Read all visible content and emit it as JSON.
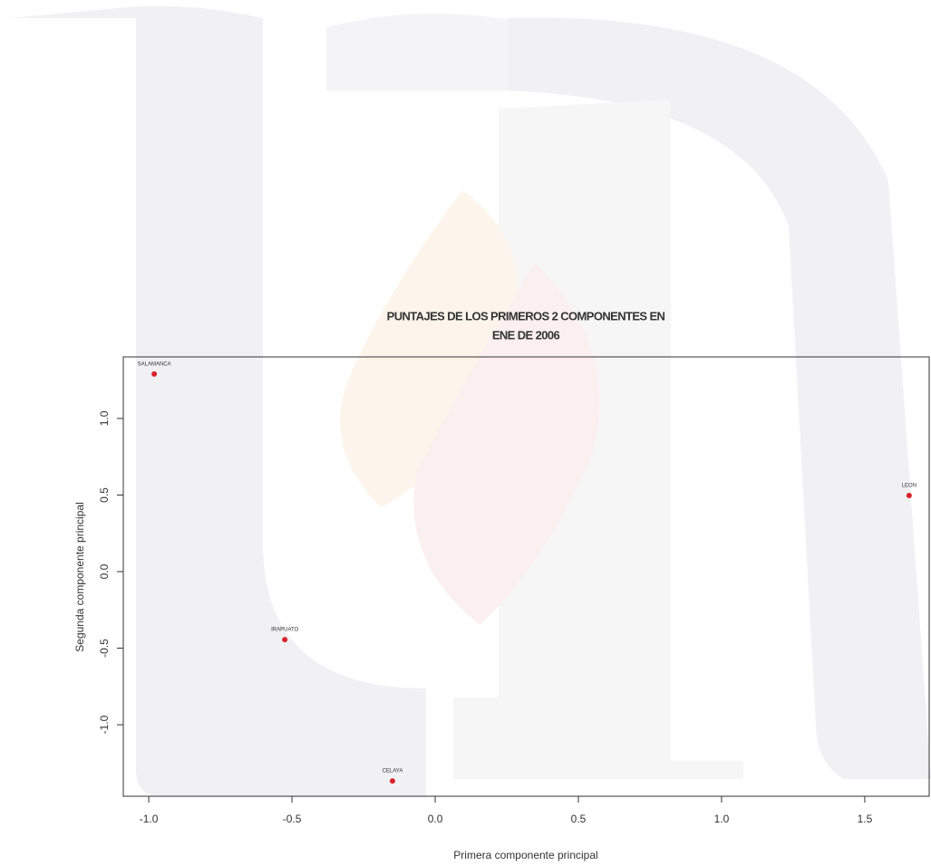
{
  "chart_data": {
    "type": "scatter",
    "title": [
      "PUNTAJES DE LOS PRIMEROS 2 COMPONENTES EN",
      "ENE DE 2006"
    ],
    "x_label": "Primera componente principal",
    "y_label": "Segunda componente principal",
    "labels": [
      "SALAMANCA",
      "LEON",
      "IRAPUATO",
      "CELAYA"
    ],
    "x": [
      -0.981,
      1.655,
      -0.525,
      -0.149
    ],
    "values": [
      1.29,
      0.497,
      -0.444,
      -1.367
    ],
    "color": "#d9212b",
    "xlim": [
      -1.089,
      1.725
    ],
    "ylim": [
      -1.467,
      1.402
    ],
    "xticks": [
      {
        "value": -1,
        "label": "-1.0"
      },
      {
        "value": -0.5,
        "label": "-0.5"
      },
      {
        "value": 0,
        "label": "0.0"
      },
      {
        "value": 0.5,
        "label": "0.5"
      },
      {
        "value": 1,
        "label": "1.0"
      },
      {
        "value": 1.5,
        "label": "1.5"
      }
    ],
    "yticks": [
      {
        "value": -1,
        "label": "-1.0"
      },
      {
        "value": -0.5,
        "label": "-0.5"
      },
      {
        "value": 0,
        "label": "0.0"
      },
      {
        "value": 0.5,
        "label": "0.5"
      },
      {
        "value": 1,
        "label": "1.0"
      }
    ]
  }
}
